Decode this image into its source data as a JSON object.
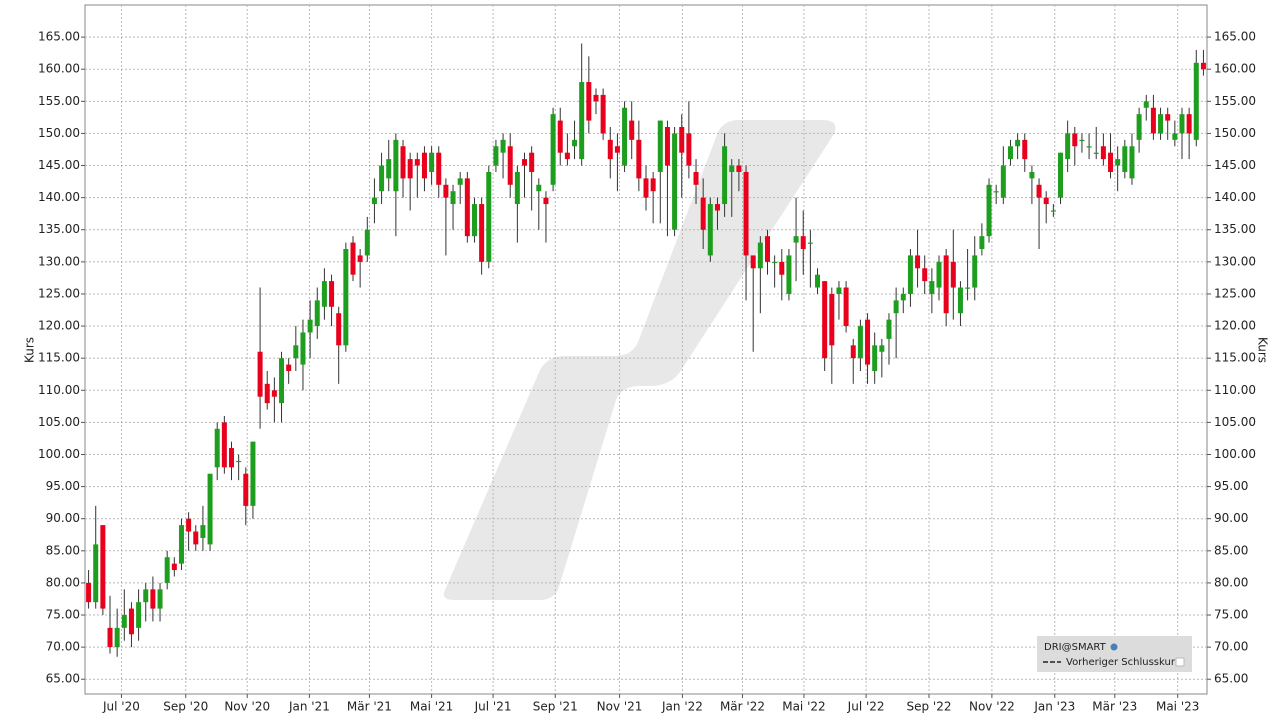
{
  "chart_data": {
    "type": "candlestick",
    "y_axis_label": "Kurs",
    "legend": [
      "DRI@SMART",
      "Vorheriger Schlusskurs"
    ],
    "up_color": "#1e9e1e",
    "down_color": "#e8001c",
    "grid": true,
    "xlim": [
      -0.5,
      156.5
    ],
    "ylim": [
      62.7,
      170
    ],
    "xticks": [
      {
        "value": 4.6,
        "label": "Jul '20"
      },
      {
        "value": 13.6,
        "label": "Sep '20"
      },
      {
        "value": 22.2,
        "label": "Nov '20"
      },
      {
        "value": 30.9,
        "label": "Jan '21"
      },
      {
        "value": 39.3,
        "label": "Mär '21"
      },
      {
        "value": 48.0,
        "label": "Mai '21"
      },
      {
        "value": 56.6,
        "label": "Jul '21"
      },
      {
        "value": 65.3,
        "label": "Sep '21"
      },
      {
        "value": 74.3,
        "label": "Nov '21"
      },
      {
        "value": 83.1,
        "label": "Jan '22"
      },
      {
        "value": 91.5,
        "label": "Mär '22"
      },
      {
        "value": 100.1,
        "label": "Mai '22"
      },
      {
        "value": 108.8,
        "label": "Jul '22"
      },
      {
        "value": 117.6,
        "label": "Sep '22"
      },
      {
        "value": 126.4,
        "label": "Nov '22"
      },
      {
        "value": 135.2,
        "label": "Jan '23"
      },
      {
        "value": 143.6,
        "label": "Mär '23"
      },
      {
        "value": 152.4,
        "label": "Mai '23"
      }
    ],
    "yticks": [
      {
        "value": 65,
        "label": "65.00"
      },
      {
        "value": 70,
        "label": "70.00"
      },
      {
        "value": 75,
        "label": "75.00"
      },
      {
        "value": 80,
        "label": "80.00"
      },
      {
        "value": 85,
        "label": "85.00"
      },
      {
        "value": 90,
        "label": "90.00"
      },
      {
        "value": 95,
        "label": "95.00"
      },
      {
        "value": 100,
        "label": "100.00"
      },
      {
        "value": 105,
        "label": "105.00"
      },
      {
        "value": 110,
        "label": "110.00"
      },
      {
        "value": 115,
        "label": "115.00"
      },
      {
        "value": 120,
        "label": "120.00"
      },
      {
        "value": 125,
        "label": "125.00"
      },
      {
        "value": 130,
        "label": "130.00"
      },
      {
        "value": 135,
        "label": "135.00"
      },
      {
        "value": 140,
        "label": "140.00"
      },
      {
        "value": 145,
        "label": "145.00"
      },
      {
        "value": 150,
        "label": "150.00"
      },
      {
        "value": 155,
        "label": "155.00"
      },
      {
        "value": 160,
        "label": "160.00"
      },
      {
        "value": 165,
        "label": "165.00"
      }
    ],
    "open": [
      80,
      77,
      89,
      73,
      70,
      73,
      76,
      73,
      77,
      79,
      76,
      80,
      83,
      83,
      90,
      88,
      87,
      86,
      98,
      105,
      101,
      99,
      97,
      92,
      116,
      111,
      110,
      108,
      114,
      115,
      114,
      119,
      120,
      123,
      127,
      122,
      117,
      133,
      131,
      131,
      139,
      141,
      143,
      141,
      148,
      146,
      146,
      147,
      144,
      147,
      142,
      139,
      142,
      143,
      134,
      139,
      130,
      145,
      147,
      148,
      139,
      146,
      147,
      141,
      140,
      142,
      152,
      147,
      148,
      146,
      158,
      156,
      156,
      149,
      148,
      145,
      152,
      149,
      143,
      143,
      144,
      151,
      135,
      151,
      150,
      144,
      140,
      131,
      139,
      139,
      144,
      145,
      144,
      131,
      129,
      134,
      130,
      130,
      125,
      133,
      134,
      133,
      126,
      127,
      125,
      125,
      126,
      117,
      115,
      121,
      113,
      116,
      118,
      122,
      124,
      125,
      131,
      129,
      125,
      126,
      131,
      130,
      122,
      126,
      126,
      132,
      134,
      141,
      140,
      146,
      148,
      149,
      143,
      142,
      140,
      138,
      140,
      146,
      150,
      149,
      148,
      147,
      148,
      147,
      145,
      144,
      143,
      149,
      154,
      154,
      150,
      153,
      149,
      150,
      153,
      149,
      161
    ],
    "high": [
      82,
      92,
      89,
      78,
      76,
      79,
      77,
      79,
      80,
      81,
      80,
      85,
      84,
      90,
      91,
      89,
      92,
      97,
      105,
      106,
      102,
      100,
      98,
      102,
      126,
      113,
      112,
      116,
      115,
      120,
      121,
      124,
      126,
      129,
      128,
      123,
      133,
      134,
      132,
      137,
      143,
      147,
      149,
      150,
      149,
      147,
      147,
      148,
      148,
      148,
      143,
      142,
      144,
      144,
      140,
      140,
      145,
      149,
      150,
      150,
      145,
      147,
      148,
      143,
      141,
      154,
      154,
      150,
      152,
      164,
      162,
      157,
      157,
      151,
      150,
      155,
      155,
      152,
      145,
      144,
      152,
      152,
      151,
      153,
      155,
      146,
      143,
      140,
      140,
      150,
      146,
      146,
      145,
      131,
      134,
      135,
      131,
      132,
      132,
      140,
      138,
      135,
      129,
      127,
      126,
      127,
      127,
      118,
      121,
      122,
      119,
      118,
      122,
      126,
      126,
      132,
      135,
      131,
      129,
      131,
      132,
      135,
      127,
      132,
      134,
      136,
      143,
      142,
      148,
      149,
      150,
      150,
      145,
      143,
      141,
      139,
      147,
      152,
      151,
      150,
      150,
      151,
      150,
      150,
      148,
      149,
      150,
      154,
      156,
      156,
      154,
      154,
      152,
      154,
      154,
      163,
      163
    ],
    "low": [
      76,
      76,
      75,
      69,
      68.5,
      71,
      70,
      71,
      74,
      74,
      74,
      79,
      81,
      82,
      85,
      85,
      85,
      85,
      96,
      97,
      96,
      96,
      89,
      90,
      104,
      107,
      105,
      105,
      111,
      113,
      110,
      115,
      118,
      121,
      120,
      111,
      116,
      127,
      126,
      130,
      136,
      139,
      141,
      134,
      140,
      138,
      140,
      141,
      142,
      140,
      131,
      135,
      139,
      133,
      133,
      128,
      129,
      144,
      143,
      140,
      133,
      140,
      138,
      135,
      133,
      141,
      145,
      145,
      146,
      145,
      150,
      153,
      149,
      143,
      141,
      144,
      146,
      141,
      138,
      136,
      136,
      134,
      134,
      140,
      143,
      139,
      132,
      130,
      135,
      137,
      137,
      141,
      124,
      116,
      122,
      128,
      126,
      124,
      124,
      127,
      128,
      126,
      125,
      113,
      111,
      121,
      119,
      111,
      113,
      111,
      111,
      112,
      114,
      115,
      122,
      123,
      126,
      125,
      122,
      124,
      120,
      121,
      120,
      124,
      124,
      131,
      133,
      139,
      139,
      145,
      146,
      144,
      139,
      132,
      136,
      137,
      139,
      144,
      145,
      147,
      146,
      146,
      145,
      143,
      141,
      143,
      142,
      147,
      152,
      149,
      149,
      149,
      148,
      146,
      146,
      148,
      159
    ],
    "close": [
      77,
      86,
      76,
      70,
      73,
      75,
      72,
      77,
      79,
      76,
      79,
      84,
      82,
      89,
      88,
      86,
      89,
      97,
      104,
      98,
      98,
      99,
      92,
      102,
      109,
      108,
      109,
      115,
      113,
      117,
      119,
      121,
      124,
      127,
      123,
      117,
      132,
      128,
      130,
      135,
      140,
      145,
      146,
      149,
      143,
      143,
      145,
      143,
      147,
      142,
      140,
      141,
      143,
      134,
      139,
      130,
      144,
      148,
      149,
      142,
      144,
      145,
      144,
      142,
      139,
      153,
      147,
      146,
      149,
      158,
      152,
      155,
      150,
      146,
      147,
      154,
      149,
      143,
      140,
      141,
      152,
      145,
      150,
      147,
      145,
      142,
      135,
      139,
      138,
      148,
      145,
      144,
      131,
      129,
      133,
      130,
      130,
      128,
      131,
      134,
      132,
      133,
      128,
      115,
      117,
      126,
      120,
      115,
      120,
      114,
      117,
      117,
      121,
      124,
      125,
      131,
      129,
      127,
      127,
      130,
      122,
      126,
      126,
      126,
      131,
      134,
      142,
      141,
      145,
      148,
      149,
      146,
      144,
      140,
      139,
      138,
      147,
      150,
      148,
      149,
      148,
      147,
      146,
      144,
      146,
      148,
      148,
      153,
      155,
      150,
      153,
      152,
      150,
      153,
      150,
      161,
      160
    ]
  }
}
